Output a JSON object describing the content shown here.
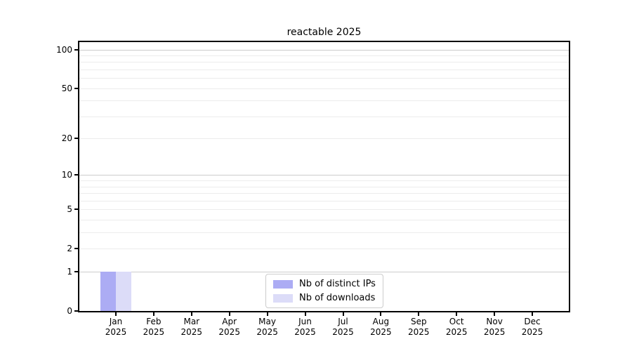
{
  "title": "reactable 2025",
  "chart_data": {
    "type": "bar",
    "title": "reactable 2025",
    "categories": [
      "Jan 2025",
      "Feb 2025",
      "Mar 2025",
      "Apr 2025",
      "May 2025",
      "Jun 2025",
      "Jul 2025",
      "Aug 2025",
      "Sep 2025",
      "Oct 2025",
      "Nov 2025",
      "Dec 2025"
    ],
    "series": [
      {
        "name": "Nb of distinct IPs",
        "color": "#acacf4",
        "values": [
          1,
          0,
          0,
          0,
          0,
          0,
          0,
          0,
          0,
          0,
          0,
          0
        ]
      },
      {
        "name": "Nb of downloads",
        "color": "#dcdcf8",
        "values": [
          1,
          0,
          0,
          0,
          0,
          0,
          0,
          0,
          0,
          0,
          0,
          0
        ]
      }
    ],
    "xlabel": "",
    "ylabel": "",
    "yscale": "log1p",
    "ylim": [
      0,
      114
    ],
    "yticks": [
      0,
      1,
      2,
      5,
      10,
      20,
      50,
      100
    ],
    "gridlines": {
      "major": [
        1,
        10,
        100
      ],
      "minor": [
        2,
        3,
        4,
        5,
        6,
        7,
        8,
        9,
        20,
        30,
        40,
        50,
        60,
        70,
        80,
        90
      ]
    },
    "legend": {
      "position": "lower center"
    },
    "colors": {
      "axis": "#000000",
      "grid_major": "#cccccc",
      "grid_minor": "#ececec",
      "legend_border": "#cccccc"
    }
  }
}
